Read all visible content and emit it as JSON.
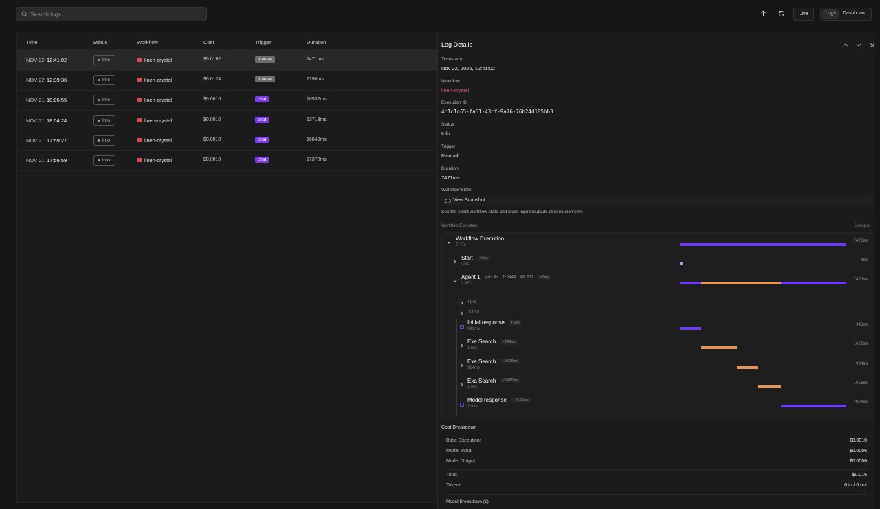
{
  "search": {
    "placeholder": "Search logs..."
  },
  "toolbar": {
    "live": "Live",
    "logs": "Logs",
    "dashboard": "Dashboard"
  },
  "table": {
    "headers": [
      "Time",
      "Status",
      "Workflow",
      "Cost",
      "Trigger",
      "Duration"
    ],
    "rows": [
      {
        "date": "NOV 22",
        "time": "12:41:02",
        "status": "Info",
        "workflow": "linen-crystal",
        "cost": "$0.0162",
        "trigger": "manual",
        "trigger_color": "#6e6e6e",
        "duration": "7471ms"
      },
      {
        "date": "NOV 22",
        "time": "12:39:36",
        "status": "Info",
        "workflow": "linen-crystal",
        "cost": "$0.0124",
        "trigger": "manual",
        "trigger_color": "#6e6e6e",
        "duration": "7190ms"
      },
      {
        "date": "NOV 21",
        "time": "18:06:55",
        "status": "Info",
        "workflow": "linen-crystal",
        "cost": "$0.0010",
        "trigger": "chat",
        "trigger_color": "#7c3aed",
        "duration": "10932ms"
      },
      {
        "date": "NOV 21",
        "time": "18:04:24",
        "status": "Info",
        "workflow": "linen-crystal",
        "cost": "$0.0010",
        "trigger": "chat",
        "trigger_color": "#7c3aed",
        "duration": "13713ms"
      },
      {
        "date": "NOV 21",
        "time": "17:59:27",
        "status": "Info",
        "workflow": "linen-crystal",
        "cost": "$0.0010",
        "trigger": "chat",
        "trigger_color": "#7c3aed",
        "duration": "16849ms"
      },
      {
        "date": "NOV 21",
        "time": "17:56:59",
        "status": "Info",
        "workflow": "linen-crystal",
        "cost": "$0.0010",
        "trigger": "chat",
        "trigger_color": "#7c3aed",
        "duration": "17378ms"
      }
    ]
  },
  "details": {
    "title": "Log Details",
    "fields": [
      {
        "label": "Timestamp",
        "value": "Nov 22, 2025, 12:41:02"
      },
      {
        "label": "Workflow",
        "value": "linen-crystal"
      },
      {
        "label": "Execution ID",
        "value": "4c1c1c65-fa61-43cf-9a76-76b24d185bb3"
      },
      {
        "label": "Status",
        "value": "Info"
      },
      {
        "label": "Trigger",
        "value": "Manual"
      },
      {
        "label": "Duration",
        "value": "7471ms"
      }
    ],
    "state": {
      "label": "Workflow State",
      "button": "View Snapshot",
      "hint": "See the exact workflow state and block inputs/outputs at execution time"
    },
    "execution": {
      "label": "Workflow Execution",
      "collapse": "Collapse",
      "root": {
        "name": "Workflow Execution",
        "sub": "7.47s",
        "duration": "7471ms",
        "color": "#6d3df2",
        "children": [
          {
            "name": "Start",
            "offset": "+0ms",
            "sub": "0ms",
            "duration": "0ms",
            "color": "#7fb3ff"
          },
          {
            "name": "Agent 1",
            "tags": [
              "gpt-4o",
              "T:2444",
              "$0.011"
            ],
            "offset": "+0ms",
            "sub": "7.47s",
            "duration": "7471ms",
            "color": "#6d3df2",
            "io": [
              "Input",
              "Output"
            ],
            "children": [
              {
                "name": "Initial response",
                "offset": "+1ms",
                "sub": "943ms",
                "duration": "943ms",
                "color": "#6d3df2"
              },
              {
                "name": "Exa Search",
                "offset": "+944ms",
                "sub": "1.63s",
                "duration": "1626ms",
                "color": "#e8955a"
              },
              {
                "name": "Exa Search",
                "offset": "+2570ms",
                "sub": "924ms",
                "duration": "924ms",
                "color": "#e8955a"
              },
              {
                "name": "Exa Search",
                "offset": "+3495ms",
                "sub": "1.06s",
                "duration": "1056ms",
                "color": "#e8955a"
              },
              {
                "name": "Model response",
                "offset": "+4551ms",
                "sub": "2.93s",
                "duration": "2928ms",
                "color": "#6d3df2"
              }
            ]
          }
        ]
      }
    },
    "cost": {
      "title": "Cost Breakdown",
      "lines": [
        {
          "label": "Base Execution:",
          "value": "$0.0010"
        },
        {
          "label": "Model Input:",
          "value": "$0.0066"
        },
        {
          "label": "Model Output:",
          "value": "$0.0086"
        }
      ],
      "totals": [
        {
          "label": "Total:",
          "value": "$0.016"
        },
        {
          "label": "Tokens:",
          "value": "0 in / 0 out"
        }
      ],
      "model_breakdown": "Model Breakdown (1)"
    }
  }
}
